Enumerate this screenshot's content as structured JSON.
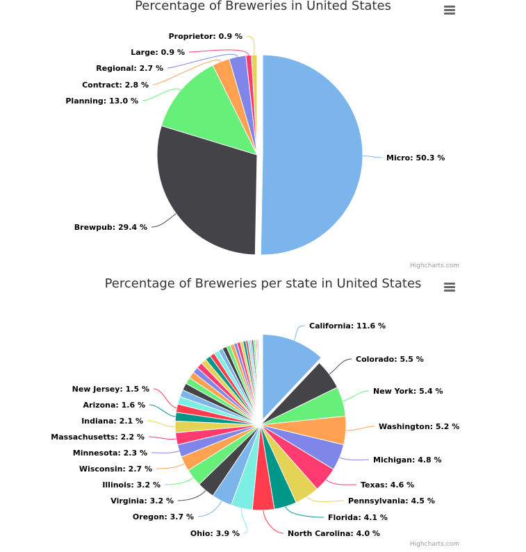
{
  "colors": [
    "#7cb5ec",
    "#434348",
    "#90ed7d",
    "#f7a35c",
    "#8085e9",
    "#f15c80",
    "#e4d354",
    "#2b908f",
    "#f45b5b",
    "#91e8e1"
  ],
  "chart_data": [
    {
      "type": "pie",
      "title": "Percentage of Breweries in United States",
      "credits": "Highcharts.com",
      "slices": [
        {
          "name": "Micro",
          "value": 50.3,
          "color": "#7cb5ec",
          "sliced": true
        },
        {
          "name": "Brewpub",
          "value": 29.4,
          "color": "#434348"
        },
        {
          "name": "Planning",
          "value": 13.0,
          "color": "#66f07a"
        },
        {
          "name": "Contract",
          "value": 2.8,
          "color": "#ffa150"
        },
        {
          "name": "Regional",
          "value": 2.7,
          "color": "#8085e9"
        },
        {
          "name": "Large",
          "value": 0.9,
          "color": "#ff3b6f"
        },
        {
          "name": "Proprietor",
          "value": 0.9,
          "color": "#e4d354"
        }
      ]
    },
    {
      "type": "pie",
      "title": "Percentage of Breweries per state in United States",
      "credits": "Highcharts.com",
      "slices": [
        {
          "name": "California",
          "value": 11.6,
          "color": "#7cb5ec",
          "sliced": true
        },
        {
          "name": "Colorado",
          "value": 5.5,
          "color": "#434348"
        },
        {
          "name": "New York",
          "value": 5.4,
          "color": "#66f07a"
        },
        {
          "name": "Washington",
          "value": 5.2,
          "color": "#ffa150"
        },
        {
          "name": "Michigan",
          "value": 4.8,
          "color": "#8085e9"
        },
        {
          "name": "Texas",
          "value": 4.6,
          "color": "#ff3b6f"
        },
        {
          "name": "Pennsylvania",
          "value": 4.5,
          "color": "#e4d354"
        },
        {
          "name": "Florida",
          "value": 4.1,
          "color": "#009688"
        },
        {
          "name": "North Carolina",
          "value": 4.0,
          "color": "#ff3c4c"
        },
        {
          "name": "Ohio",
          "value": 3.9,
          "color": "#7deee4"
        },
        {
          "name": "Oregon",
          "value": 3.7,
          "color": "#7cb5ec"
        },
        {
          "name": "Virginia",
          "value": 3.2,
          "color": "#434348"
        },
        {
          "name": "Illinois",
          "value": 3.2,
          "color": "#66f07a"
        },
        {
          "name": "Wisconsin",
          "value": 2.7,
          "color": "#ffa150"
        },
        {
          "name": "Minnesota",
          "value": 2.3,
          "color": "#8085e9"
        },
        {
          "name": "Massachusetts",
          "value": 2.2,
          "color": "#ff3b6f"
        },
        {
          "name": "Indiana",
          "value": 2.1,
          "color": "#e4d354"
        },
        {
          "name": "Arizona",
          "value": 1.6,
          "color": "#009688"
        },
        {
          "name": "New Jersey",
          "value": 1.5,
          "color": "#ff3c4c"
        },
        {
          "value": 1.4,
          "color": "#7deee4"
        },
        {
          "value": 1.3,
          "color": "#7cb5ec"
        },
        {
          "value": 1.3,
          "color": "#434348"
        },
        {
          "value": 1.2,
          "color": "#66f07a"
        },
        {
          "value": 1.2,
          "color": "#ffa150"
        },
        {
          "value": 1.1,
          "color": "#8085e9"
        },
        {
          "value": 1.1,
          "color": "#ff3b6f"
        },
        {
          "value": 1.0,
          "color": "#e4d354"
        },
        {
          "value": 1.0,
          "color": "#009688"
        },
        {
          "value": 0.9,
          "color": "#ff3c4c"
        },
        {
          "value": 0.9,
          "color": "#7deee4"
        },
        {
          "value": 0.8,
          "color": "#7cb5ec"
        },
        {
          "value": 0.8,
          "color": "#434348"
        },
        {
          "value": 0.7,
          "color": "#66f07a"
        },
        {
          "value": 0.7,
          "color": "#ffa150"
        },
        {
          "value": 0.6,
          "color": "#8085e9"
        },
        {
          "value": 0.6,
          "color": "#ff3b6f"
        },
        {
          "value": 0.5,
          "color": "#e4d354"
        },
        {
          "value": 0.5,
          "color": "#009688"
        },
        {
          "value": 0.4,
          "color": "#ff3c4c"
        },
        {
          "value": 0.4,
          "color": "#7deee4"
        },
        {
          "value": 0.3,
          "color": "#7cb5ec"
        },
        {
          "value": 0.3,
          "color": "#434348"
        },
        {
          "value": 0.3,
          "color": "#66f07a"
        },
        {
          "value": 0.2,
          "color": "#ffa150"
        },
        {
          "value": 0.2,
          "color": "#8085e9"
        },
        {
          "value": 0.2,
          "color": "#ff3b6f"
        },
        {
          "value": 0.1,
          "color": "#e4d354"
        },
        {
          "value": 0.1,
          "color": "#009688"
        },
        {
          "value": 0.1,
          "color": "#ff3c4c"
        },
        {
          "value": 0.1,
          "color": "#7deee4"
        }
      ]
    }
  ]
}
